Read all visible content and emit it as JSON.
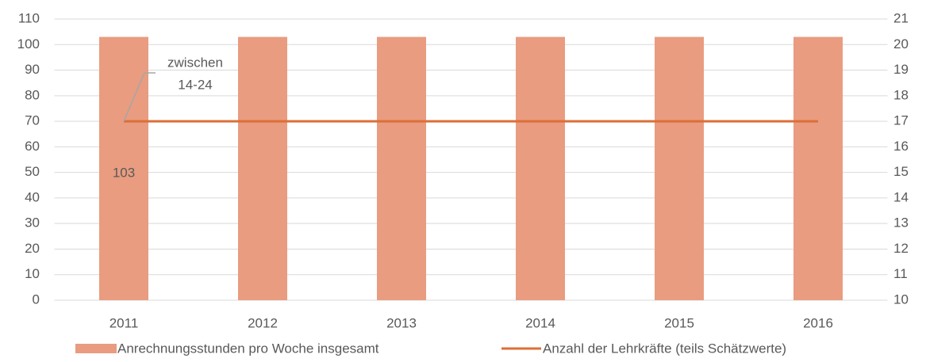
{
  "chart_data": {
    "type": "bar_line",
    "categories": [
      "2011",
      "2012",
      "2013",
      "2014",
      "2015",
      "2016"
    ],
    "series": [
      {
        "name": "Anrechnungsstunden pro Woche insgesamt",
        "type": "bar",
        "color": "#e99c80",
        "values": [
          103,
          103,
          103,
          103,
          103,
          103
        ]
      },
      {
        "name": "Anzahl der Lehrkräfte (teils Schätzwerte)",
        "type": "line",
        "axis": "y2",
        "color": "#dd6f37",
        "values": [
          17,
          17,
          17,
          17,
          17,
          17
        ]
      }
    ],
    "ylim": [
      0,
      110
    ],
    "yticks": [
      0,
      10,
      20,
      30,
      40,
      50,
      60,
      70,
      80,
      90,
      100,
      110
    ],
    "y2lim": [
      10,
      21
    ],
    "y2ticks": [
      10,
      11,
      12,
      13,
      14,
      15,
      16,
      17,
      18,
      19,
      20,
      21
    ],
    "grid": true,
    "legend": "bottom",
    "annotation": {
      "lines": [
        "zwischen",
        "14-24"
      ]
    }
  }
}
